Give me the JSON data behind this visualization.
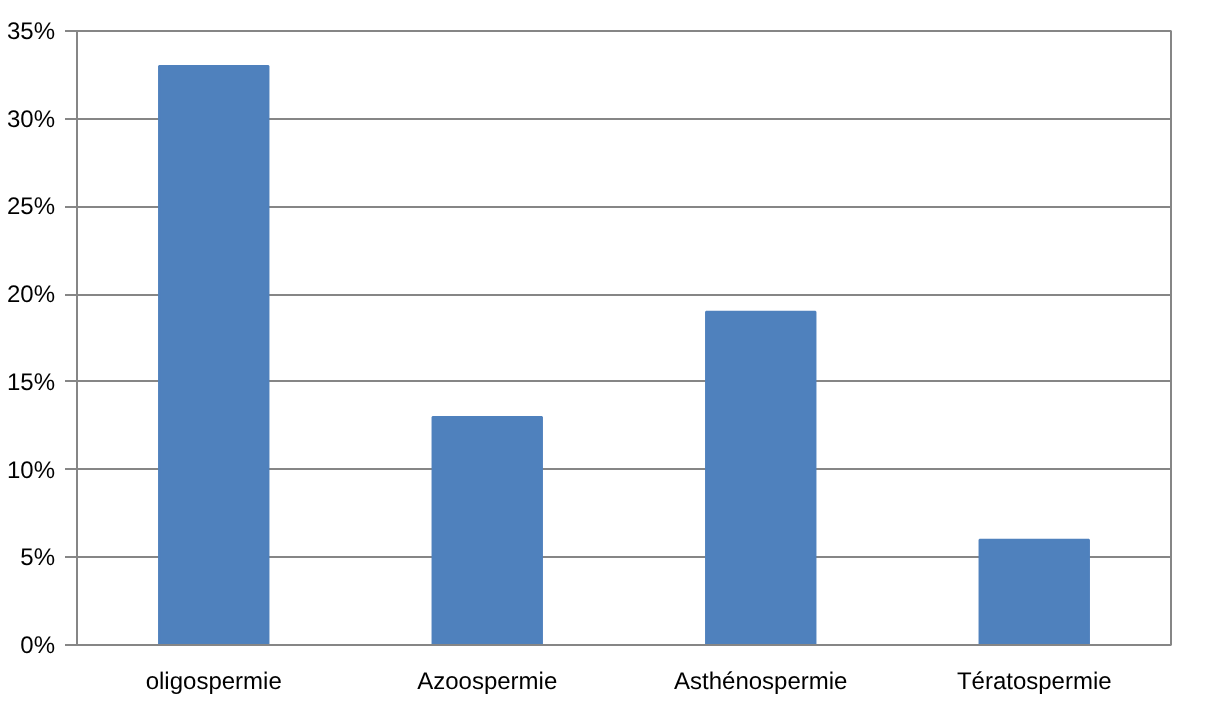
{
  "chart_data": {
    "type": "bar",
    "categories": [
      "oligospermie",
      "Azoospermie",
      "Asthénospermie",
      "Tératospermie"
    ],
    "values": [
      33,
      13,
      19,
      6
    ],
    "color": "#4f81bd",
    "ylim": [
      0,
      35
    ],
    "yticks": [
      {
        "value": 0,
        "label": "0%"
      },
      {
        "value": 5,
        "label": "5%"
      },
      {
        "value": 10,
        "label": "10%"
      },
      {
        "value": 15,
        "label": "15%"
      },
      {
        "value": 20,
        "label": "20%"
      },
      {
        "value": 25,
        "label": "25%"
      },
      {
        "value": 30,
        "label": "30%"
      },
      {
        "value": 35,
        "label": "35%"
      }
    ],
    "grid": "y"
  }
}
